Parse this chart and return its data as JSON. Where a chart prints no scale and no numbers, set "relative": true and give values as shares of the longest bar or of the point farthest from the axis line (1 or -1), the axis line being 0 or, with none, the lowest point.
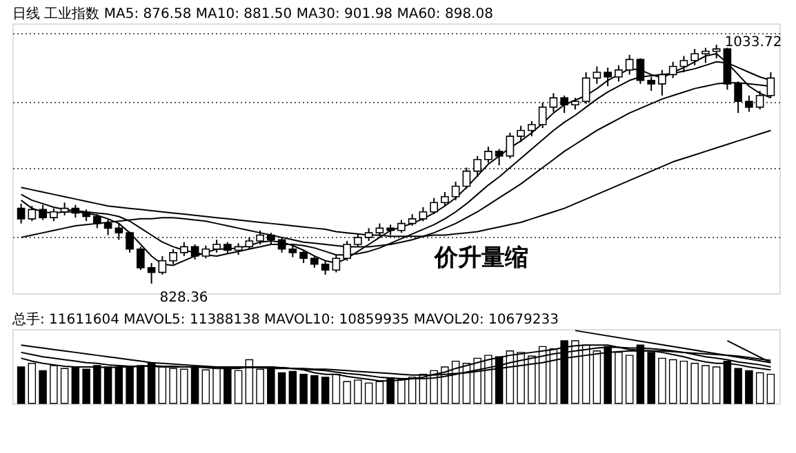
{
  "chart_data": [
    {
      "type": "candlestick",
      "title": "日线  工业指数 MA5: 876.58 MA10: 881.50 MA30: 901.98 MA60: 898.08",
      "relative": false,
      "tick_labels": false,
      "grid": "y",
      "categories": [
        null,
        null,
        null,
        null,
        null,
        null,
        null,
        null,
        null,
        null,
        null,
        null,
        null,
        null,
        null,
        null,
        null,
        null,
        null,
        null,
        null,
        null,
        null,
        null,
        null,
        null,
        null,
        null,
        null,
        null,
        null,
        null,
        null,
        null,
        null,
        null,
        null,
        null,
        null,
        null,
        null,
        null,
        null,
        null,
        null,
        null,
        null,
        null,
        null,
        null,
        null,
        null,
        null,
        null,
        null,
        null,
        null,
        null,
        null,
        null,
        null,
        null,
        null,
        null,
        null,
        null,
        null,
        null,
        null,
        null
      ],
      "ylim": [
        820,
        1052
      ],
      "yticks": [
        {
          "value": 869,
          "label": null
        },
        {
          "value": 928,
          "label": null
        },
        {
          "value": 985,
          "label": null
        },
        {
          "value": 1044,
          "label": null
        }
      ],
      "ohlc": [
        [
          893,
          897,
          880,
          884
        ],
        [
          884,
          895,
          882,
          892
        ],
        [
          892,
          896,
          883,
          885
        ],
        [
          885,
          893,
          882,
          890
        ],
        [
          890,
          898,
          887,
          893
        ],
        [
          893,
          896,
          885,
          889
        ],
        [
          889,
          892,
          882,
          886
        ],
        [
          886,
          888,
          876,
          880
        ],
        [
          880,
          884,
          870,
          876
        ],
        [
          876,
          880,
          866,
          872
        ],
        [
          872,
          873,
          855,
          858
        ],
        [
          858,
          860,
          840,
          842
        ],
        [
          842,
          846,
          828.36,
          838
        ],
        [
          838,
          852,
          836,
          848
        ],
        [
          848,
          858,
          845,
          855
        ],
        [
          855,
          864,
          852,
          860
        ],
        [
          860,
          862,
          849,
          852
        ],
        [
          852,
          861,
          850,
          858
        ],
        [
          858,
          866,
          855,
          862
        ],
        [
          862,
          864,
          854,
          857
        ],
        [
          857,
          863,
          853,
          860
        ],
        [
          860,
          868,
          858,
          865
        ],
        [
          865,
          874,
          862,
          870
        ],
        [
          870,
          872,
          862,
          866
        ],
        [
          866,
          868,
          855,
          858
        ],
        [
          858,
          862,
          851,
          855
        ],
        [
          855,
          857,
          846,
          850
        ],
        [
          850,
          852,
          842,
          845
        ],
        [
          845,
          848,
          836,
          840
        ],
        [
          840,
          853,
          838,
          850
        ],
        [
          850,
          865,
          848,
          862
        ],
        [
          862,
          871,
          860,
          868
        ],
        [
          868,
          876,
          865,
          872
        ],
        [
          872,
          880,
          869,
          876
        ],
        [
          876,
          879,
          870,
          874
        ],
        [
          874,
          883,
          872,
          880
        ],
        [
          880,
          888,
          878,
          884
        ],
        [
          884,
          894,
          882,
          890
        ],
        [
          890,
          902,
          888,
          898
        ],
        [
          898,
          907,
          895,
          903
        ],
        [
          903,
          916,
          900,
          912
        ],
        [
          912,
          928,
          910,
          925
        ],
        [
          925,
          938,
          920,
          935
        ],
        [
          935,
          946,
          932,
          942
        ],
        [
          942,
          944,
          930,
          938
        ],
        [
          938,
          958,
          936,
          955
        ],
        [
          955,
          964,
          950,
          960
        ],
        [
          960,
          968,
          955,
          965
        ],
        [
          965,
          984,
          962,
          980
        ],
        [
          980,
          992,
          976,
          988
        ],
        [
          988,
          990,
          975,
          982
        ],
        [
          982,
          988,
          978,
          985
        ],
        [
          985,
          1010,
          983,
          1005
        ],
        [
          1005,
          1015,
          1000,
          1010
        ],
        [
          1010,
          1014,
          998,
          1006
        ],
        [
          1006,
          1016,
          1002,
          1012
        ],
        [
          1012,
          1025,
          1008,
          1021
        ],
        [
          1021,
          1022,
          1000,
          1003
        ],
        [
          1003,
          1006,
          994,
          1000
        ],
        [
          1000,
          1012,
          990,
          1008
        ],
        [
          1008,
          1019,
          1005,
          1015
        ],
        [
          1015,
          1024,
          1010,
          1020
        ],
        [
          1020,
          1030,
          1016,
          1026
        ],
        [
          1026,
          1031,
          1018,
          1028
        ],
        [
          1028,
          1033.72,
          1022,
          1030
        ],
        [
          1030,
          1031,
          995,
          1000
        ],
        [
          1000,
          1002,
          975,
          985
        ],
        [
          985,
          990,
          976,
          980
        ],
        [
          980,
          994,
          978,
          990
        ],
        [
          990,
          1010,
          988,
          1005
        ]
      ],
      "series": [
        {
          "type": "line",
          "color": "#000000",
          "values": [
            900,
            893,
            890,
            889,
            890,
            890,
            889,
            887,
            884,
            880,
            872,
            862,
            852,
            845,
            844,
            848,
            852,
            855,
            858,
            858,
            859,
            861,
            864,
            865,
            864,
            861,
            857,
            852,
            848,
            846,
            850,
            856,
            862,
            868,
            874,
            877,
            880,
            884,
            889,
            895,
            902,
            911,
            921,
            931,
            938,
            945,
            951,
            958,
            966,
            975,
            982,
            986,
            990,
            996,
            1003,
            1008,
            1013,
            1012,
            1008,
            1005,
            1010,
            1014,
            1019,
            1024,
            1026,
            1018,
            1008,
            998,
            992,
            988
          ]
        },
        {
          "type": "line",
          "color": "#000000",
          "values": [
            905,
            900,
            897,
            894,
            892,
            891,
            890,
            889,
            888,
            886,
            882,
            876,
            870,
            864,
            860,
            857,
            855,
            853,
            852,
            854,
            856,
            858,
            860,
            862,
            862,
            862,
            861,
            859,
            856,
            853,
            853,
            854,
            856,
            859,
            863,
            867,
            871,
            875,
            879,
            884,
            890,
            897,
            905,
            913,
            920,
            928,
            936,
            944,
            952,
            960,
            967,
            973,
            980,
            987,
            993,
            998,
            1003,
            1006,
            1007,
            1008,
            1009,
            1011,
            1013,
            1016,
            1019,
            1018,
            1014,
            1010,
            1006,
            1003
          ]
        },
        {
          "type": "line",
          "color": "#000000",
          "values": [
            868,
            870,
            872,
            874,
            876,
            878,
            879,
            880,
            881,
            882,
            883,
            884,
            884,
            885,
            885,
            884,
            883,
            882,
            880,
            878,
            876,
            874,
            872,
            870,
            868,
            866,
            864,
            863,
            862,
            861,
            860,
            860,
            860,
            861,
            862,
            864,
            866,
            869,
            872,
            876,
            880,
            885,
            890,
            896,
            902,
            908,
            914,
            921,
            928,
            935,
            942,
            948,
            954,
            960,
            965,
            970,
            975,
            979,
            983,
            987,
            990,
            993,
            996,
            998,
            1000,
            1001,
            1001,
            1000,
            999,
            998
          ]
        },
        {
          "type": "line",
          "color": "#000000",
          "values": [
            911,
            909,
            907,
            905,
            903,
            901,
            899,
            897,
            895,
            894,
            893,
            892,
            891,
            890,
            889,
            888,
            887,
            886,
            885,
            884,
            883,
            882,
            881,
            880,
            879,
            878,
            877,
            876,
            875,
            873,
            872,
            871,
            870,
            870,
            869,
            869,
            869,
            869,
            870,
            870,
            871,
            872,
            873,
            875,
            877,
            879,
            881,
            884,
            887,
            890,
            893,
            897,
            901,
            905,
            909,
            913,
            917,
            921,
            925,
            929,
            933,
            936,
            939,
            942,
            945,
            948,
            951,
            954,
            957,
            960
          ]
        }
      ],
      "annotations": [
        "828.36",
        "1033.72",
        "价升量缩"
      ]
    },
    {
      "type": "bar",
      "title": "总手: 11611604 MAVOL5: 11388138 MAVOL10: 10859935 MAVOL20: 10679233",
      "relative": true,
      "tick_labels": false,
      "categories": [
        null,
        null,
        null,
        null,
        null,
        null,
        null,
        null,
        null,
        null,
        null,
        null,
        null,
        null,
        null,
        null,
        null,
        null,
        null,
        null,
        null,
        null,
        null,
        null,
        null,
        null,
        null,
        null,
        null,
        null,
        null,
        null,
        null,
        null,
        null,
        null,
        null,
        null,
        null,
        null,
        null,
        null,
        null,
        null,
        null,
        null,
        null,
        null,
        null,
        null,
        null,
        null,
        null,
        null,
        null,
        null,
        null,
        null,
        null,
        null,
        null,
        null,
        null,
        null,
        null,
        null,
        null,
        null,
        null,
        null
      ],
      "series": [
        {
          "type": "bar",
          "values": [
            0.5,
            0.55,
            0.45,
            0.52,
            0.48,
            0.5,
            0.47,
            0.52,
            0.5,
            0.49,
            0.5,
            0.52,
            0.55,
            0.5,
            0.48,
            0.47,
            0.5,
            0.46,
            0.5,
            0.48,
            0.45,
            0.6,
            0.47,
            0.5,
            0.42,
            0.44,
            0.4,
            0.38,
            0.36,
            0.4,
            0.3,
            0.32,
            0.28,
            0.3,
            0.35,
            0.33,
            0.36,
            0.4,
            0.45,
            0.5,
            0.58,
            0.55,
            0.62,
            0.66,
            0.64,
            0.72,
            0.7,
            0.65,
            0.78,
            0.75,
            0.86,
            0.86,
            0.8,
            0.72,
            0.78,
            0.7,
            0.66,
            0.8,
            0.7,
            0.62,
            0.6,
            0.58,
            0.55,
            0.52,
            0.5,
            0.58,
            0.48,
            0.45,
            0.42,
            0.4
          ],
          "colors": [
            "#000000",
            "#ffffff",
            "#000000",
            "#ffffff",
            "#ffffff",
            "#000000",
            "#000000",
            "#000000",
            "#000000",
            "#000000",
            "#000000",
            "#000000",
            "#000000",
            "#ffffff",
            "#ffffff",
            "#ffffff",
            "#000000",
            "#ffffff",
            "#ffffff",
            "#000000",
            "#ffffff",
            "#ffffff",
            "#ffffff",
            "#000000",
            "#000000",
            "#000000",
            "#000000",
            "#000000",
            "#000000",
            "#ffffff",
            "#ffffff",
            "#ffffff",
            "#ffffff",
            "#ffffff",
            "#000000",
            "#ffffff",
            "#ffffff",
            "#ffffff",
            "#ffffff",
            "#ffffff",
            "#ffffff",
            "#ffffff",
            "#ffffff",
            "#ffffff",
            "#000000",
            "#ffffff",
            "#ffffff",
            "#ffffff",
            "#ffffff",
            "#ffffff",
            "#000000",
            "#ffffff",
            "#ffffff",
            "#ffffff",
            "#000000",
            "#ffffff",
            "#ffffff",
            "#000000",
            "#000000",
            "#ffffff",
            "#ffffff",
            "#ffffff",
            "#ffffff",
            "#ffffff",
            "#ffffff",
            "#000000",
            "#000000",
            "#000000",
            "#ffffff",
            "#ffffff"
          ]
        },
        {
          "type": "line",
          "color": "#000000",
          "values": [
            0.62,
            0.58,
            0.55,
            0.53,
            0.51,
            0.5,
            0.5,
            0.5,
            0.49,
            0.5,
            0.5,
            0.51,
            0.52,
            0.51,
            0.51,
            0.5,
            0.5,
            0.49,
            0.48,
            0.48,
            0.48,
            0.5,
            0.5,
            0.5,
            0.49,
            0.48,
            0.46,
            0.42,
            0.4,
            0.4,
            0.37,
            0.35,
            0.33,
            0.31,
            0.31,
            0.32,
            0.34,
            0.36,
            0.4,
            0.43,
            0.48,
            0.52,
            0.56,
            0.6,
            0.63,
            0.66,
            0.68,
            0.7,
            0.72,
            0.74,
            0.77,
            0.79,
            0.8,
            0.8,
            0.8,
            0.77,
            0.74,
            0.73,
            0.72,
            0.7,
            0.67,
            0.64,
            0.6,
            0.57,
            0.55,
            0.55,
            0.53,
            0.5,
            0.48,
            0.46
          ]
        },
        {
          "type": "line",
          "color": "#000000",
          "values": [
            0.7,
            0.67,
            0.64,
            0.62,
            0.6,
            0.58,
            0.56,
            0.55,
            0.53,
            0.52,
            0.51,
            0.51,
            0.51,
            0.5,
            0.5,
            0.5,
            0.5,
            0.5,
            0.5,
            0.49,
            0.49,
            0.49,
            0.49,
            0.48,
            0.48,
            0.48,
            0.47,
            0.46,
            0.45,
            0.43,
            0.41,
            0.4,
            0.38,
            0.36,
            0.35,
            0.34,
            0.34,
            0.34,
            0.35,
            0.37,
            0.4,
            0.43,
            0.46,
            0.49,
            0.52,
            0.56,
            0.59,
            0.62,
            0.65,
            0.68,
            0.7,
            0.72,
            0.74,
            0.76,
            0.77,
            0.77,
            0.76,
            0.76,
            0.75,
            0.74,
            0.72,
            0.7,
            0.67,
            0.64,
            0.62,
            0.6,
            0.57,
            0.55,
            0.53,
            0.5
          ]
        },
        {
          "type": "line",
          "color": "#000000",
          "values": [
            0.8,
            0.78,
            0.76,
            0.74,
            0.72,
            0.7,
            0.68,
            0.66,
            0.64,
            0.62,
            0.6,
            0.58,
            0.56,
            0.55,
            0.54,
            0.53,
            0.52,
            0.51,
            0.5,
            0.5,
            0.5,
            0.5,
            0.49,
            0.49,
            0.49,
            0.48,
            0.48,
            0.47,
            0.47,
            0.46,
            0.45,
            0.44,
            0.43,
            0.42,
            0.41,
            0.4,
            0.39,
            0.39,
            0.39,
            0.4,
            0.41,
            0.42,
            0.44,
            0.46,
            0.48,
            0.5,
            0.52,
            0.54,
            0.56,
            0.59,
            0.62,
            0.64,
            0.66,
            0.68,
            0.7,
            0.71,
            0.72,
            0.72,
            0.72,
            0.72,
            0.71,
            0.7,
            0.69,
            0.68,
            0.67,
            0.66,
            0.65,
            0.63,
            0.61,
            0.59
          ]
        },
        {
          "type": "line",
          "color": "#000000",
          "values": [
            null,
            null,
            null,
            null,
            null,
            null,
            null,
            null,
            null,
            null,
            null,
            null,
            null,
            null,
            null,
            null,
            null,
            null,
            null,
            null,
            null,
            null,
            null,
            null,
            null,
            null,
            null,
            null,
            null,
            null,
            null,
            null,
            null,
            null,
            null,
            null,
            null,
            null,
            null,
            null,
            null,
            null,
            null,
            null,
            null,
            null,
            null,
            null,
            null,
            null,
            null,
            1,
            null,
            null,
            null,
            null,
            null,
            null,
            null,
            null,
            null,
            null,
            null,
            null,
            null,
            null,
            null,
            null,
            null,
            0.56
          ]
        },
        {
          "type": "line",
          "color": "#000000",
          "values": [
            null,
            null,
            null,
            null,
            null,
            null,
            null,
            null,
            null,
            null,
            null,
            null,
            null,
            null,
            null,
            null,
            null,
            null,
            null,
            null,
            null,
            null,
            null,
            null,
            null,
            null,
            null,
            null,
            null,
            null,
            null,
            null,
            null,
            null,
            null,
            null,
            null,
            null,
            null,
            null,
            null,
            null,
            null,
            null,
            null,
            null,
            null,
            null,
            null,
            null,
            null,
            null,
            null,
            null,
            null,
            null,
            null,
            null,
            null,
            null,
            null,
            null,
            null,
            null,
            null,
            0.86,
            null,
            null,
            null,
            0.56
          ]
        }
      ]
    }
  ]
}
